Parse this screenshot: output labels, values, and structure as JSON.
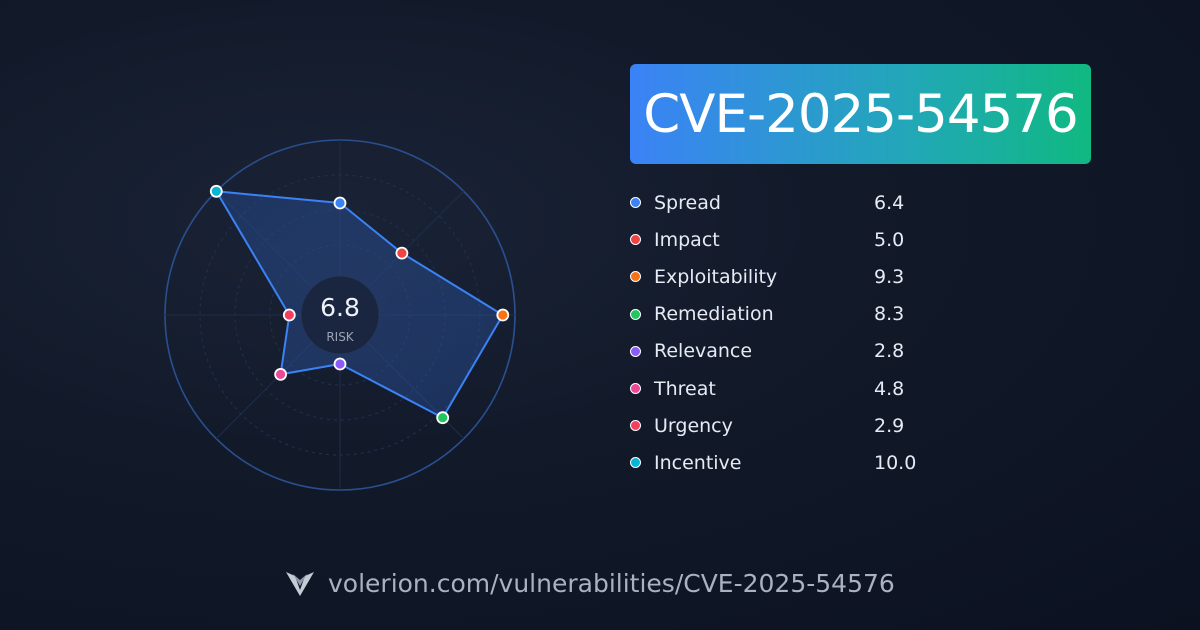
{
  "title": "CVE-2025-54576",
  "footer": {
    "url": "volerion.com/vulnerabilities/CVE-2025-54576",
    "logo_icon": "volerion-logo-icon"
  },
  "chart_data": {
    "type": "radar",
    "center_value": "6.8",
    "center_label": "RISK",
    "range": [
      0,
      10
    ],
    "grid": true,
    "legend_placement": "right",
    "categories": [
      "Spread",
      "Impact",
      "Exploitability",
      "Remediation",
      "Relevance",
      "Threat",
      "Urgency",
      "Incentive"
    ],
    "values": [
      6.4,
      5.0,
      9.3,
      8.3,
      2.8,
      4.8,
      2.9,
      10.0
    ],
    "value_labels": [
      "6.4",
      "5.0",
      "9.3",
      "8.3",
      "2.8",
      "4.8",
      "2.9",
      "10.0"
    ],
    "colors": [
      "#3b82f6",
      "#ef4444",
      "#f97316",
      "#22c55e",
      "#8b5cf6",
      "#ec4899",
      "#f43f5e",
      "#06b6d4"
    ],
    "accent_color": "#3b82f6"
  }
}
